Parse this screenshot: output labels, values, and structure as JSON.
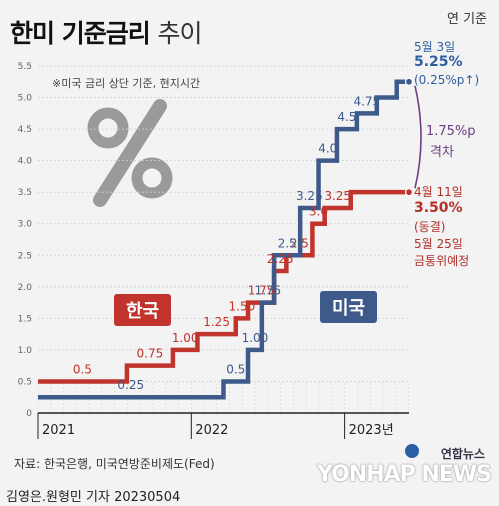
{
  "title": {
    "main": "한미 기준금리",
    "sub": "추이"
  },
  "unit": "연 기준",
  "note": "※미국 금리 상단 기준, 현지시간",
  "source": "자료: 한국은행, 미국연방준비제도(Fed)",
  "byline": "김영은.원형민 기자  20230504",
  "logo": {
    "text": "연합뉴스",
    "watermark": "YONHAP NEWS"
  },
  "tags": {
    "korea": "한국",
    "us": "미국"
  },
  "colors": {
    "korea": "#c0342d",
    "us": "#3d5a8a",
    "gap": "#6a3f85"
  },
  "annotations": {
    "us_date": "5월 3일",
    "us_rate": "5.25%",
    "us_change": "(0.25%p↑)",
    "gap_value": "1.75%p",
    "gap_label": "격차",
    "korea_date": "4월 11일",
    "korea_rate": "3.50%",
    "korea_status": "(동결)",
    "next_meeting": "5월 25일",
    "next_meeting_2": "금통위예정"
  },
  "chart_data": {
    "type": "line",
    "step": true,
    "ylim": [
      0,
      5.5
    ],
    "yticks": [
      "0",
      "0.5",
      "1.0",
      "1.5",
      "2.0",
      "2.5",
      "3.0",
      "3.5",
      "4.0",
      "4.5",
      "5.0",
      "5.5"
    ],
    "xticks": [
      "2021",
      "2022",
      "2023년"
    ],
    "xlim": [
      2021.0,
      2023.42
    ],
    "grid": true,
    "series": [
      {
        "name": "한국",
        "color": "#c0342d",
        "x": [
          2021.0,
          2021.58,
          2021.88,
          2022.04,
          2022.29,
          2022.37,
          2022.54,
          2022.62,
          2022.79,
          2022.87,
          2023.04,
          2023.42
        ],
        "y": [
          0.5,
          0.75,
          1.0,
          1.25,
          1.5,
          1.75,
          2.25,
          2.5,
          3.0,
          3.25,
          3.5,
          3.5
        ],
        "labels": [
          "0.5",
          "0.75",
          "1.00",
          "1.25",
          "1.50",
          "1.75",
          "2.25",
          "2.5",
          "3.0",
          "3.25",
          "",
          ""
        ]
      },
      {
        "name": "미국",
        "color": "#3d5a8a",
        "x": [
          2021.0,
          2022.21,
          2022.37,
          2022.46,
          2022.54,
          2022.71,
          2022.83,
          2022.95,
          2023.08,
          2023.21,
          2023.34,
          2023.42
        ],
        "y": [
          0.25,
          0.5,
          1.0,
          1.75,
          2.5,
          3.25,
          4.0,
          4.5,
          4.75,
          5.0,
          5.25,
          5.25
        ],
        "labels": [
          "0.25",
          "0.5",
          "1.00",
          "1.75",
          "2.5",
          "3.25",
          "4.0",
          "4.5",
          "4.75",
          "",
          "",
          ""
        ]
      }
    ]
  }
}
